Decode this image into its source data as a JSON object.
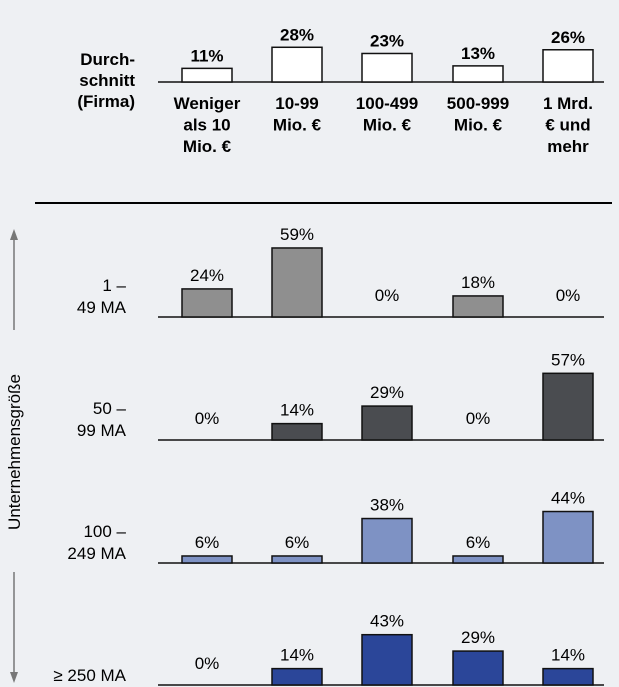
{
  "colors": {
    "background": "#eef0f3",
    "average_fill": "#ffffff",
    "row_1_49": "#8f8f8f",
    "row_50_99": "#4a4c50",
    "row_100_249": "#7e92c4",
    "row_250": "#2b4699",
    "outline": "#111111"
  },
  "chart_data": {
    "type": "bar",
    "categories": [
      "Weniger als 10 Mio. €",
      "10-99 Mio. €",
      "100-499 Mio. €",
      "500-999 Mio. €",
      "1 Mrd. € und mehr"
    ],
    "category_label_lines": [
      [
        "Weniger",
        "als 10",
        "Mio. €"
      ],
      [
        "10-99",
        "Mio. €"
      ],
      [
        "100-499",
        "Mio. €"
      ],
      [
        "500-999",
        "Mio. €"
      ],
      [
        "1 Mrd.",
        "€ und",
        "mehr"
      ]
    ],
    "average": {
      "label_lines": [
        "Durch-",
        "schnitt",
        "(Firma)"
      ],
      "values": [
        11,
        28,
        23,
        13,
        26
      ],
      "labels": [
        "11%",
        "28%",
        "23%",
        "13%",
        "26%"
      ]
    },
    "ylabel": "Unternehmensgröße",
    "series": [
      {
        "name": "1 – 49 MA",
        "label_lines": [
          "1 –",
          "49 MA"
        ],
        "values": [
          24,
          59,
          0,
          18,
          0
        ],
        "labels": [
          "24%",
          "59%",
          "0%",
          "18%",
          "0%"
        ]
      },
      {
        "name": "50 – 99 MA",
        "label_lines": [
          "50 –",
          "99 MA"
        ],
        "values": [
          0,
          14,
          29,
          0,
          57
        ],
        "labels": [
          "0%",
          "14%",
          "29%",
          "0%",
          "57%"
        ]
      },
      {
        "name": "100 – 249 MA",
        "label_lines": [
          "100 –",
          "249 MA"
        ],
        "values": [
          6,
          6,
          38,
          6,
          44
        ],
        "labels": [
          "6%",
          "6%",
          "38%",
          "6%",
          "44%"
        ]
      },
      {
        "name": "≥ 250 MA",
        "label_lines": [
          "≥ 250 MA"
        ],
        "values": [
          0,
          14,
          43,
          29,
          14
        ],
        "labels": [
          "0%",
          "14%",
          "43%",
          "29%",
          "14%"
        ]
      }
    ]
  }
}
